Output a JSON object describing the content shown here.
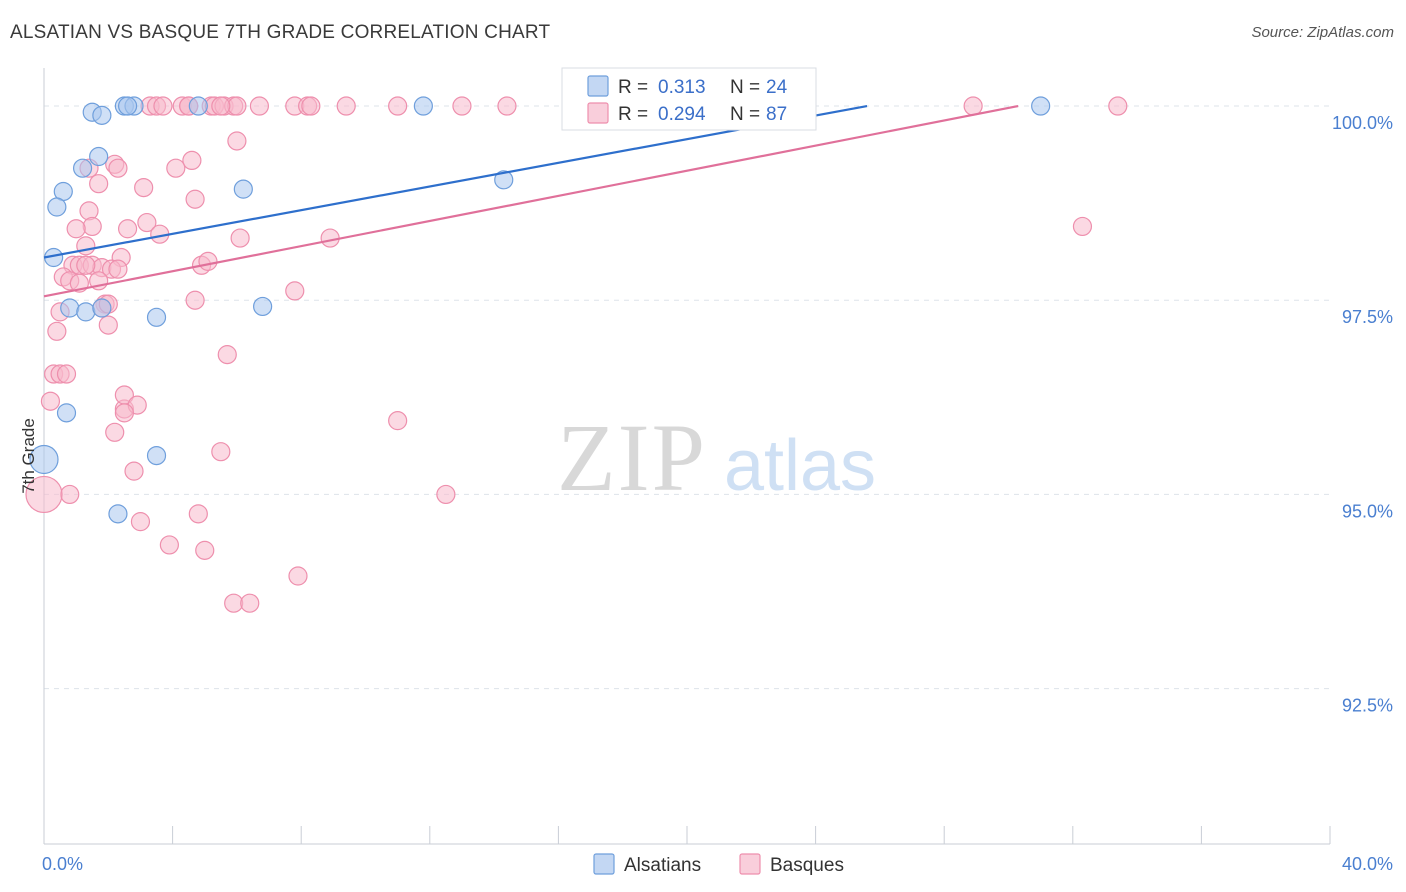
{
  "header": {
    "title": "ALSATIAN VS BASQUE 7TH GRADE CORRELATION CHART",
    "source": "Source: ZipAtlas.com"
  },
  "watermark": {
    "zip": "ZIP",
    "atlas": "atlas"
  },
  "colors": {
    "alsatian_fill": "#a9c6ee",
    "alsatian_stroke": "#6f9fdc",
    "alsatian_line": "#2e6fcc",
    "basque_fill": "#f7b9cc",
    "basque_stroke": "#ee8fad",
    "basque_line": "#e0709a",
    "grid": "#dde3ea",
    "tick_text": "#4a7fd0"
  },
  "chart_data": {
    "type": "scatter",
    "title": "ALSATIAN VS BASQUE 7TH GRADE CORRELATION CHART",
    "xlabel": "",
    "ylabel": "7th Grade",
    "xlim": [
      0,
      40
    ],
    "ylim": [
      90.5,
      100.85
    ],
    "x_tick_labels": [
      {
        "value": 0,
        "label": "0.0%"
      },
      {
        "value": 40,
        "label": "40.0%"
      }
    ],
    "y_tick_labels": [
      {
        "value": 100,
        "label": "100.0%"
      },
      {
        "value": 97.5,
        "label": "97.5%"
      },
      {
        "value": 95,
        "label": "95.0%"
      },
      {
        "value": 92.5,
        "label": "92.5%"
      }
    ],
    "x_minor_ticks": [
      4,
      8,
      12,
      16,
      20,
      24,
      28,
      32,
      36,
      40
    ],
    "legend": {
      "position": "top-center",
      "entries": [
        {
          "series": "Alsatians",
          "r_label": "R =",
          "r": "0.313",
          "n_label": "N =",
          "n": "24"
        },
        {
          "series": "Basques",
          "r_label": "R =",
          "r": "0.294",
          "n_label": "N =",
          "n": "87"
        }
      ]
    },
    "bottom_legend": [
      "Alsatians",
      "Basques"
    ],
    "series": [
      {
        "name": "Alsatians",
        "trend": {
          "x": [
            0,
            25.6
          ],
          "y": [
            98.05,
            100.0
          ]
        },
        "points": [
          [
            1.5,
            99.92
          ],
          [
            1.8,
            99.88
          ],
          [
            2.5,
            100.0
          ],
          [
            2.8,
            100.0
          ],
          [
            2.6,
            100.0
          ],
          [
            4.8,
            100.0
          ],
          [
            11.8,
            100.0
          ],
          [
            31.0,
            100.0
          ],
          [
            1.7,
            99.35
          ],
          [
            1.2,
            99.2
          ],
          [
            0.6,
            98.9
          ],
          [
            0.4,
            98.7
          ],
          [
            6.2,
            98.93
          ],
          [
            14.3,
            99.05
          ],
          [
            0.3,
            98.05
          ],
          [
            0.8,
            97.4
          ],
          [
            1.3,
            97.35
          ],
          [
            1.8,
            97.4
          ],
          [
            3.5,
            97.28
          ],
          [
            6.8,
            97.42
          ],
          [
            0.7,
            96.05
          ],
          [
            3.5,
            95.5
          ],
          [
            2.3,
            94.75
          ],
          [
            0.0,
            95.45
          ]
        ],
        "point_sizes": [
          9,
          9,
          9,
          9,
          9,
          9,
          9,
          9,
          9,
          9,
          9,
          9,
          9,
          9,
          9,
          9,
          9,
          9,
          9,
          9,
          9,
          9,
          9,
          14
        ]
      },
      {
        "name": "Basques",
        "trend": {
          "x": [
            0,
            30.3
          ],
          "y": [
            97.55,
            100.0
          ]
        },
        "points": [
          [
            3.3,
            100.0
          ],
          [
            3.5,
            100.0
          ],
          [
            3.7,
            100.0
          ],
          [
            4.3,
            100.0
          ],
          [
            4.5,
            100.0
          ],
          [
            5.2,
            100.0
          ],
          [
            5.3,
            100.0
          ],
          [
            5.6,
            100.0
          ],
          [
            5.9,
            100.0
          ],
          [
            6.0,
            100.0
          ],
          [
            6.7,
            100.0
          ],
          [
            7.8,
            100.0
          ],
          [
            8.2,
            100.0
          ],
          [
            8.3,
            100.0
          ],
          [
            9.4,
            100.0
          ],
          [
            11.0,
            100.0
          ],
          [
            13.0,
            100.0
          ],
          [
            14.4,
            100.0
          ],
          [
            20.7,
            100.0
          ],
          [
            28.9,
            100.0
          ],
          [
            33.4,
            100.0
          ],
          [
            6.0,
            99.55
          ],
          [
            4.6,
            99.3
          ],
          [
            2.2,
            99.25
          ],
          [
            1.4,
            99.2
          ],
          [
            4.1,
            99.2
          ],
          [
            2.3,
            99.2
          ],
          [
            1.7,
            99.0
          ],
          [
            3.1,
            98.95
          ],
          [
            4.7,
            98.8
          ],
          [
            1.4,
            98.65
          ],
          [
            1.5,
            98.45
          ],
          [
            1.0,
            98.42
          ],
          [
            2.6,
            98.42
          ],
          [
            3.2,
            98.5
          ],
          [
            3.6,
            98.35
          ],
          [
            6.1,
            98.3
          ],
          [
            8.9,
            98.3
          ],
          [
            32.3,
            98.45
          ],
          [
            1.3,
            98.2
          ],
          [
            2.4,
            98.05
          ],
          [
            0.9,
            97.95
          ],
          [
            1.1,
            97.95
          ],
          [
            1.5,
            97.95
          ],
          [
            1.8,
            97.92
          ],
          [
            4.9,
            97.95
          ],
          [
            5.1,
            98.0
          ],
          [
            2.1,
            97.9
          ],
          [
            2.3,
            97.9
          ],
          [
            0.6,
            97.8
          ],
          [
            0.8,
            97.75
          ],
          [
            1.1,
            97.72
          ],
          [
            1.7,
            97.75
          ],
          [
            7.8,
            97.62
          ],
          [
            4.7,
            97.5
          ],
          [
            1.9,
            97.45
          ],
          [
            0.5,
            97.35
          ],
          [
            1.8,
            97.4
          ],
          [
            2.0,
            97.18
          ],
          [
            0.4,
            97.1
          ],
          [
            5.7,
            96.8
          ],
          [
            0.3,
            96.55
          ],
          [
            0.5,
            96.55
          ],
          [
            0.7,
            96.55
          ],
          [
            0.2,
            96.2
          ],
          [
            2.5,
            96.1
          ],
          [
            2.5,
            96.28
          ],
          [
            2.9,
            96.15
          ],
          [
            2.5,
            96.05
          ],
          [
            11.0,
            95.95
          ],
          [
            2.2,
            95.8
          ],
          [
            5.5,
            95.55
          ],
          [
            2.8,
            95.3
          ],
          [
            0.8,
            95.0
          ],
          [
            12.5,
            95.0
          ],
          [
            0.0,
            95.0
          ],
          [
            4.8,
            94.75
          ],
          [
            3.0,
            94.65
          ],
          [
            3.9,
            94.35
          ],
          [
            5.0,
            94.28
          ],
          [
            7.9,
            93.95
          ],
          [
            5.9,
            93.6
          ],
          [
            6.4,
            93.6
          ],
          [
            2.0,
            97.45
          ],
          [
            1.3,
            97.95
          ],
          [
            5.5,
            100.0
          ],
          [
            4.5,
            100.0
          ]
        ],
        "point_sizes": [
          9,
          9,
          9,
          9,
          9,
          9,
          9,
          9,
          9,
          9,
          9,
          9,
          9,
          9,
          9,
          9,
          9,
          9,
          9,
          9,
          9,
          9,
          9,
          9,
          9,
          9,
          9,
          9,
          9,
          9,
          9,
          9,
          9,
          9,
          9,
          9,
          9,
          9,
          9,
          9,
          9,
          9,
          9,
          9,
          9,
          9,
          9,
          9,
          9,
          9,
          9,
          9,
          9,
          9,
          9,
          9,
          9,
          9,
          9,
          9,
          9,
          9,
          9,
          9,
          9,
          9,
          9,
          9,
          9,
          9,
          9,
          9,
          9,
          9,
          9,
          18,
          9,
          9,
          9,
          9,
          9,
          9,
          9,
          9,
          9,
          9,
          9
        ]
      }
    ]
  }
}
